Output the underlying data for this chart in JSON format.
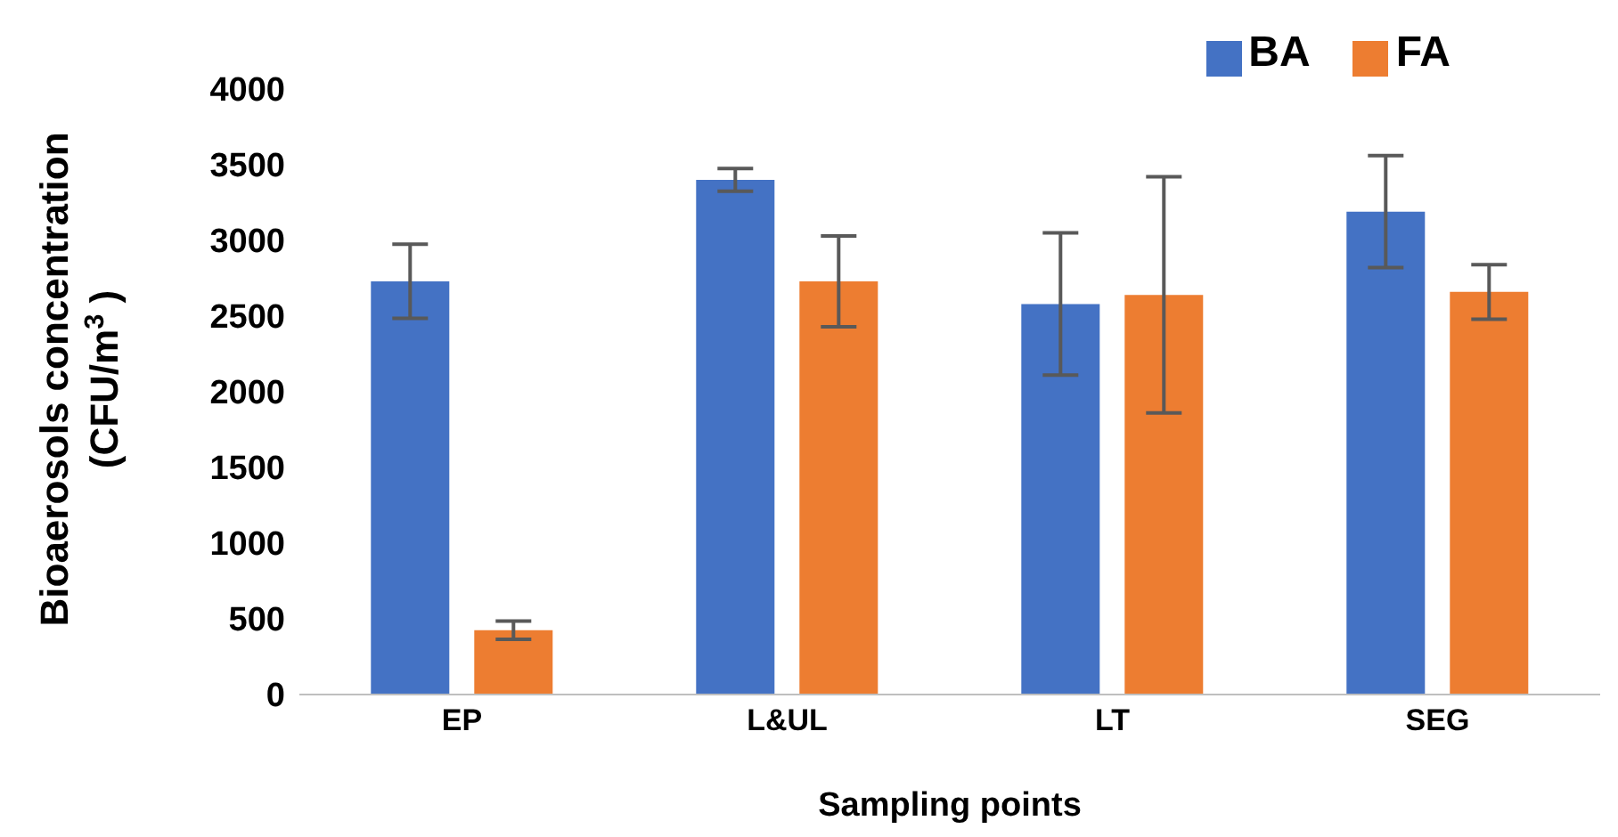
{
  "chart_data": {
    "type": "bar",
    "xlabel": "Sampling points",
    "ylabel": "Bioaerosols concentration\n(CFU/m$^{3}$ )",
    "categories": [
      "EP",
      "L&UL",
      "LT",
      "SEG"
    ],
    "series": [
      {
        "name": "BA",
        "color": "#4472c4",
        "values": [
          2730,
          3400,
          2580,
          3190
        ],
        "errors": [
          245,
          75,
          470,
          370
        ]
      },
      {
        "name": "FA",
        "color": "#ed7d31",
        "values": [
          425,
          2730,
          2640,
          2660
        ],
        "errors": [
          60,
          300,
          780,
          180
        ]
      }
    ],
    "ylim": [
      0,
      4000
    ],
    "yticks": [
      0,
      500,
      1000,
      1500,
      2000,
      2500,
      3000,
      3500,
      4000
    ],
    "grid": false,
    "legend": "top right"
  }
}
